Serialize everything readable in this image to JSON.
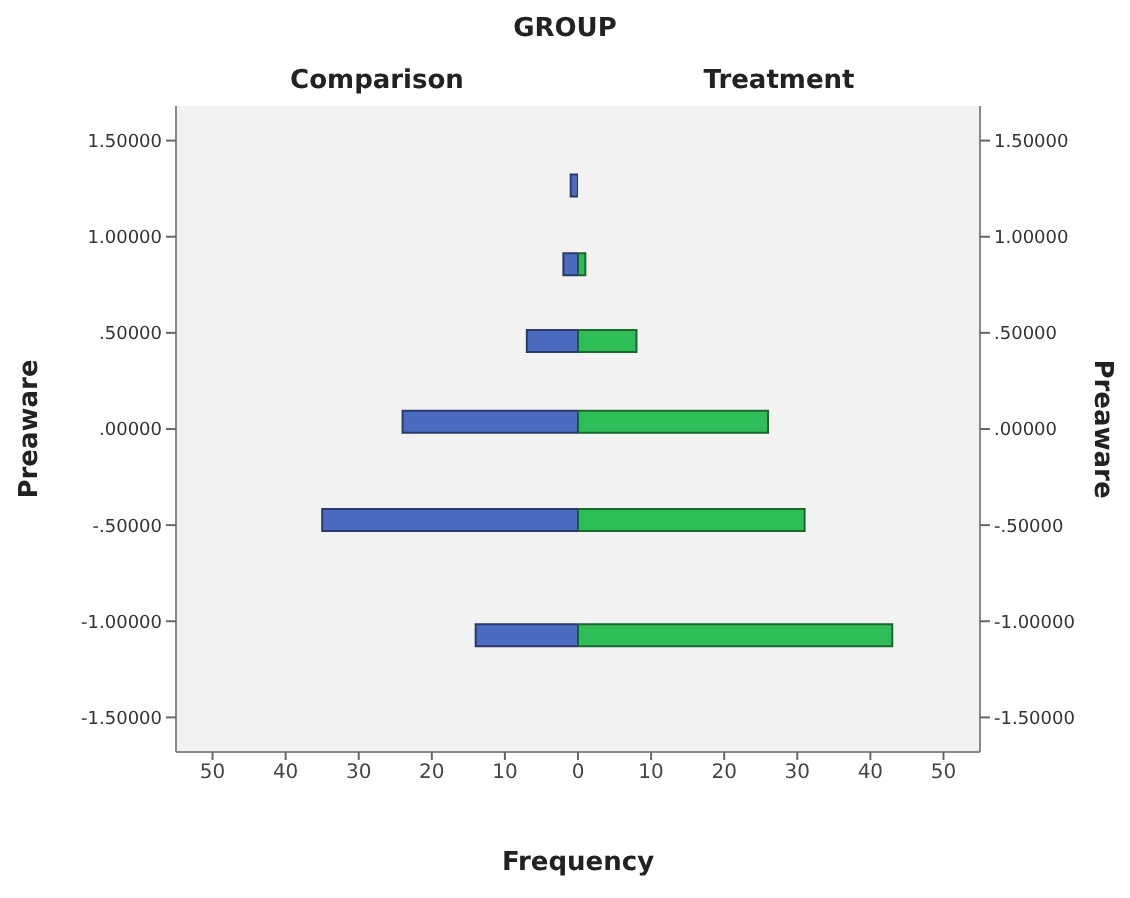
{
  "chart_data": [
    {
      "type": "bar",
      "orientation": "horizontal",
      "title": "Comparison",
      "annotations": [
        "GROUP"
      ],
      "xlabel": "Frequency",
      "ylabel": "Preaware",
      "x": [
        1.27,
        0.86,
        0.46,
        0.04,
        -0.47,
        -1.07
      ],
      "series": [
        {
          "color": "#4a6bbf",
          "values": [
            1,
            2,
            7,
            24,
            35,
            14
          ]
        }
      ],
      "xlim": [
        55,
        0
      ],
      "xticks": [
        50,
        40,
        30,
        20,
        10,
        {
          "value": 0,
          "label": null
        }
      ],
      "ylim": [
        -1.68,
        1.68
      ],
      "yticks": [
        {
          "value": 1.5,
          "label": "1.50000"
        },
        {
          "value": 1,
          "label": "1.00000"
        },
        {
          "value": 0.5,
          "label": ".50000"
        },
        {
          "value": 0,
          "label": ".00000"
        },
        {
          "value": -0.5,
          "label": "-.50000"
        },
        {
          "value": -1,
          "label": "-1.00000"
        },
        {
          "value": -1.5,
          "label": "-1.50000"
        }
      ]
    },
    {
      "type": "bar",
      "orientation": "horizontal",
      "title": "Treatment",
      "ylabel": "Preaware",
      "x": [
        1.27,
        0.86,
        0.46,
        0.04,
        -0.47,
        -1.07
      ],
      "series": [
        {
          "color": "#2ebd57",
          "values": [
            0,
            1,
            8,
            26,
            31,
            43
          ]
        }
      ],
      "xlim": [
        0,
        55
      ],
      "xticks": [
        0,
        10,
        20,
        30,
        40,
        50
      ],
      "ylim": [
        -1.68,
        1.68
      ],
      "yticks": [
        {
          "value": 1.5,
          "label": "1.50000"
        },
        {
          "value": 1,
          "label": "1.00000"
        },
        {
          "value": 0.5,
          "label": ".50000"
        },
        {
          "value": 0,
          "label": ".00000"
        },
        {
          "value": -0.5,
          "label": "-.50000"
        },
        {
          "value": -1,
          "label": "-1.00000"
        },
        {
          "value": -1.5,
          "label": "-1.50000"
        }
      ]
    }
  ]
}
